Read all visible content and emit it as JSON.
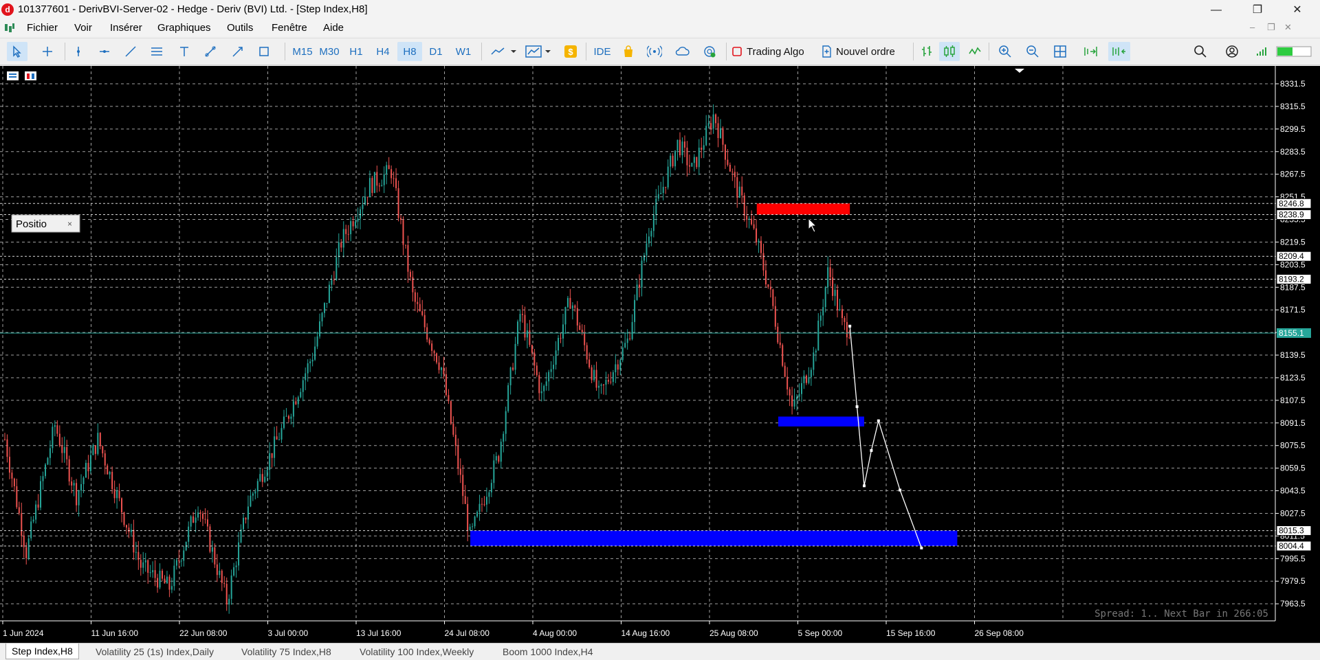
{
  "window": {
    "title": "101377601 - DerivBVI-Server-02 - Hedge - Deriv (BVI) Ltd. - [Step Index,H8]",
    "app_icon_letter": "d"
  },
  "menu": [
    "Fichier",
    "Voir",
    "Insérer",
    "Graphiques",
    "Outils",
    "Fenêtre",
    "Aide"
  ],
  "toolbar": {
    "timeframes": [
      "M15",
      "M30",
      "H1",
      "H4",
      "H8",
      "D1",
      "W1"
    ],
    "active_timeframe": "H8",
    "ide_label": "IDE",
    "trading_algo_label": "Trading Algo",
    "new_order_label": "Nouvel ordre"
  },
  "chart": {
    "symbol": "Step Index",
    "timeframe": "H8",
    "positions_panel_label": "Positio",
    "spread_text": "Spread: 1.. Next Bar in 266:05",
    "price_axis_labels": [
      "8331.5",
      "8315.5",
      "8299.5",
      "8283.5",
      "8267.5",
      "8251.5",
      "8235.5",
      "8219.5",
      "8203.5",
      "8187.5",
      "8171.5",
      "8155.5",
      "8139.5",
      "8123.5",
      "8107.5",
      "8091.5",
      "8075.5",
      "8059.5",
      "8043.5",
      "8027.5",
      "8011.5",
      "7995.5",
      "7979.5",
      "7963.5"
    ],
    "level_labels": [
      {
        "text": "8246.8",
        "style": "dash"
      },
      {
        "text": "8238.9",
        "style": "dash"
      },
      {
        "text": "8209.4",
        "style": "dash"
      },
      {
        "text": "8193.2",
        "style": "dash"
      },
      {
        "text": "8155.1",
        "style": "current"
      },
      {
        "text": "8015.3",
        "style": "dash"
      },
      {
        "text": "8004.4",
        "style": "dash"
      }
    ],
    "time_axis_labels": [
      "1 Jun 2024",
      "11 Jun 16:00",
      "22 Jun 08:00",
      "3 Jul 00:00",
      "13 Jul 16:00",
      "24 Jul 08:00",
      "4 Aug 00:00",
      "14 Aug 16:00",
      "25 Aug 08:00",
      "5 Sep 00:00",
      "15 Sep 16:00",
      "26 Sep 08:00"
    ],
    "colors": {
      "bull": "#26a69a",
      "bear": "#ef5350",
      "background": "#000000",
      "grid": "#c8c8c8",
      "current_price": "#26a69a",
      "supply_zone": "#ff0000",
      "demand_zone": "#0000ff",
      "projection": "#ffffff"
    },
    "zones": [
      {
        "type": "supply",
        "top": 8246.8,
        "bottom": 8238.9,
        "start_date": "14 Sep 2024",
        "end_date": "27 Sep 2024"
      },
      {
        "type": "demand",
        "top": 8096,
        "bottom": 8089,
        "start_date": "17 Sep 2024",
        "end_date": "29 Sep 2024"
      },
      {
        "type": "demand",
        "top": 8015.3,
        "bottom": 8004.4,
        "start_date": "5 Aug 2024",
        "end_date": "12 Oct 2024"
      }
    ],
    "projection_path": [
      {
        "date": "27 Sep 2024",
        "price": 8160
      },
      {
        "date": "28 Sep 2024",
        "price": 8103
      },
      {
        "date": "29 Sep 2024",
        "price": 8047
      },
      {
        "date": "30 Sep 2024",
        "price": 8072
      },
      {
        "date": "1 Oct 2024",
        "price": 8093
      },
      {
        "date": "4 Oct 2024",
        "price": 8044
      },
      {
        "date": "7 Oct 2024",
        "price": 8003
      }
    ],
    "price_path": [
      {
        "date": "1 Jun 2024",
        "price": 8080
      },
      {
        "date": "4 Jun 2024",
        "price": 8000
      },
      {
        "date": "8 Jun 2024",
        "price": 8090
      },
      {
        "date": "11 Jun 2024",
        "price": 8040
      },
      {
        "date": "14 Jun 2024",
        "price": 8080
      },
      {
        "date": "20 Jun 2024",
        "price": 7990
      },
      {
        "date": "24 Jun 2024",
        "price": 7975
      },
      {
        "date": "28 Jun 2024",
        "price": 8035
      },
      {
        "date": "2 Jul 2024",
        "price": 7965
      },
      {
        "date": "5 Jul 2024",
        "price": 8035
      },
      {
        "date": "10 Jul 2024",
        "price": 8090
      },
      {
        "date": "14 Jul 2024",
        "price": 8140
      },
      {
        "date": "18 Jul 2024",
        "price": 8220
      },
      {
        "date": "22 Jul 2024",
        "price": 8260
      },
      {
        "date": "25 Jul 2024",
        "price": 8270
      },
      {
        "date": "28 Jul 2024",
        "price": 8180
      },
      {
        "date": "1 Aug 2024",
        "price": 8130
      },
      {
        "date": "5 Aug 2024",
        "price": 8010
      },
      {
        "date": "9 Aug 2024",
        "price": 8070
      },
      {
        "date": "12 Aug 2024",
        "price": 8170
      },
      {
        "date": "15 Aug 2024",
        "price": 8110
      },
      {
        "date": "19 Aug 2024",
        "price": 8180
      },
      {
        "date": "23 Aug 2024",
        "price": 8110
      },
      {
        "date": "27 Aug 2024",
        "price": 8150
      },
      {
        "date": "30 Aug 2024",
        "price": 8230
      },
      {
        "date": "3 Sep 2024",
        "price": 8290
      },
      {
        "date": "5 Sep 2024",
        "price": 8270
      },
      {
        "date": "8 Sep 2024",
        "price": 8310
      },
      {
        "date": "11 Sep 2024",
        "price": 8260
      },
      {
        "date": "14 Sep 2024",
        "price": 8220
      },
      {
        "date": "16 Sep 2024",
        "price": 8180
      },
      {
        "date": "19 Sep 2024",
        "price": 8100
      },
      {
        "date": "22 Sep 2024",
        "price": 8140
      },
      {
        "date": "24 Sep 2024",
        "price": 8200
      },
      {
        "date": "26 Sep 2024",
        "price": 8160
      },
      {
        "date": "27 Sep 2024",
        "price": 8158
      }
    ]
  },
  "tabs": [
    "Step Index,H8",
    "Volatility 25 (1s) Index,Daily",
    "Volatility 75 Index,H8",
    "Volatility 100 Index,Weekly",
    "Boom 1000 Index,H4"
  ],
  "active_tab": 0
}
